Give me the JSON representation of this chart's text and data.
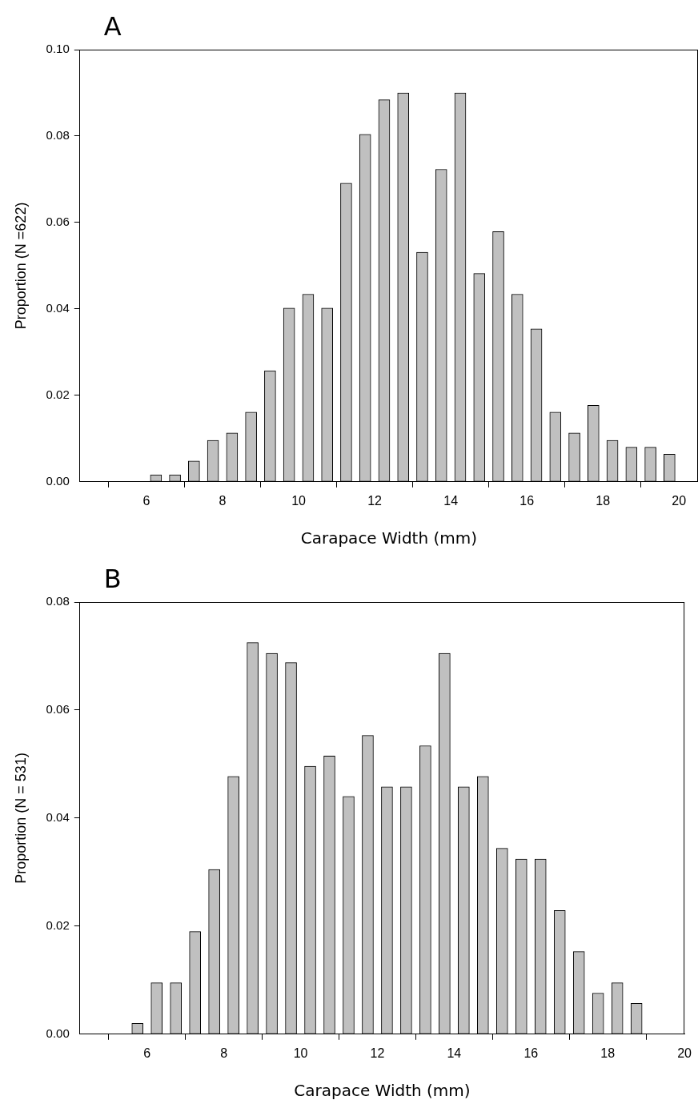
{
  "chart_data": [
    {
      "type": "bar",
      "title": "A",
      "xlabel": "Carapace Width (mm)",
      "ylabel": "Proportion (N =622)",
      "color": "#c0c0c0",
      "x": [
        6.25,
        6.75,
        7.25,
        7.75,
        8.25,
        8.75,
        9.25,
        9.75,
        10.25,
        10.75,
        11.25,
        11.75,
        12.25,
        12.75,
        13.25,
        13.75,
        14.25,
        14.75,
        15.25,
        15.75,
        16.25,
        16.75,
        17.25,
        17.75,
        18.25,
        18.75,
        19.25,
        19.75
      ],
      "values": [
        0.0016,
        0.0016,
        0.0048,
        0.0096,
        0.0113,
        0.0161,
        0.0257,
        0.0402,
        0.0434,
        0.0402,
        0.0691,
        0.0804,
        0.0884,
        0.09,
        0.0531,
        0.0723,
        0.09,
        0.0482,
        0.0579,
        0.0434,
        0.0354,
        0.0161,
        0.0113,
        0.0177,
        0.0096,
        0.008,
        0.008,
        0.0064
      ],
      "xlim": [
        4.25,
        20.5
      ],
      "xticks": [
        6,
        8,
        10,
        12,
        14,
        16,
        18,
        20
      ],
      "ylim": [
        0,
        0.1
      ],
      "yticks": [
        {
          "value": 0,
          "label": "0.00"
        },
        {
          "value": 0.02,
          "label": "0.02"
        },
        {
          "value": 0.04,
          "label": "0.04"
        },
        {
          "value": 0.06,
          "label": "0.06"
        },
        {
          "value": 0.08,
          "label": "0.08"
        },
        {
          "value": 0.1,
          "label": "0.10"
        }
      ]
    },
    {
      "type": "bar",
      "title": "B",
      "xlabel": "Carapace Width (mm)",
      "ylabel": "Proportion (N = 531)",
      "color": "#c0c0c0",
      "x": [
        5.75,
        6.25,
        6.75,
        7.25,
        7.75,
        8.25,
        8.75,
        9.25,
        9.75,
        10.25,
        10.75,
        11.25,
        11.75,
        12.25,
        12.75,
        13.25,
        13.75,
        14.25,
        14.75,
        15.25,
        15.75,
        16.25,
        16.75,
        17.25,
        17.75,
        18.25,
        18.75
      ],
      "values": [
        0.002,
        0.0095,
        0.0095,
        0.019,
        0.0305,
        0.0477,
        0.0725,
        0.0705,
        0.0688,
        0.0496,
        0.0515,
        0.044,
        0.0553,
        0.0458,
        0.0458,
        0.0534,
        0.0705,
        0.0458,
        0.0477,
        0.0344,
        0.0324,
        0.0324,
        0.0229,
        0.0153,
        0.0076,
        0.0095,
        0.0057
      ],
      "xlim": [
        4.25,
        20
      ],
      "xticks": [
        6,
        8,
        10,
        12,
        14,
        16,
        18,
        20
      ],
      "ylim": [
        0,
        0.08
      ],
      "yticks": [
        {
          "value": 0,
          "label": "0.00"
        },
        {
          "value": 0.02,
          "label": "0.02"
        },
        {
          "value": 0.04,
          "label": "0.04"
        },
        {
          "value": 0.06,
          "label": "0.06"
        },
        {
          "value": 0.08,
          "label": "0.08"
        }
      ]
    }
  ]
}
